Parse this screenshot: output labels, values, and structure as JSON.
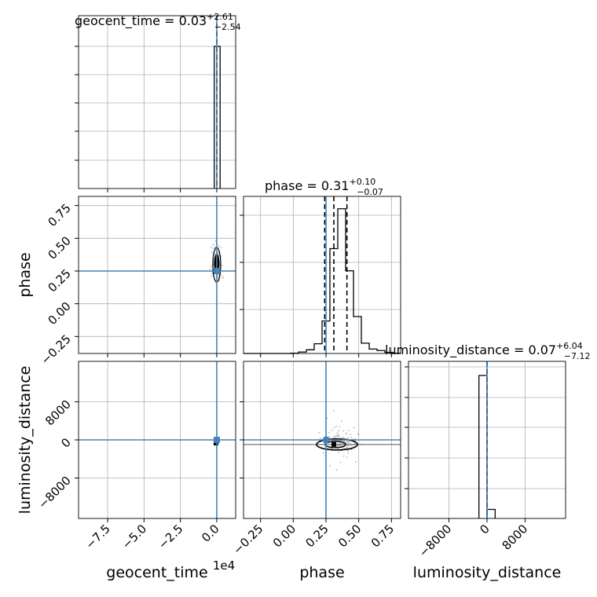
{
  "chart_data": [
    {
      "panel": "1-1",
      "type": "histogram",
      "parameter": "geocent_time",
      "title": {
        "name": "geocent_time",
        "median": "0.03",
        "upper": "+2.61",
        "lower": "−2.54"
      },
      "xlim": [
        -95000,
        13000
      ],
      "bins": [
        {
          "x0": -1700,
          "x1": 2300,
          "count": 1.0
        }
      ],
      "quantile_lines": [
        -2.51,
        0.03,
        2.64
      ],
      "truth": 0,
      "grid": true
    },
    {
      "panel": "2-1",
      "type": "scatter",
      "x_parameter": "geocent_time",
      "y_parameter": "phase",
      "xlim": [
        -95000,
        13000
      ],
      "ylim": [
        -0.38,
        0.82
      ],
      "truth": {
        "x": 0,
        "y": 0.25
      },
      "density_center": {
        "x": 0,
        "y": 0.31
      },
      "grid": true
    },
    {
      "panel": "2-2",
      "type": "histogram",
      "parameter": "phase",
      "title": {
        "name": "phase",
        "median": "0.31",
        "upper": "+0.10",
        "lower": "−0.07"
      },
      "xlim": [
        -0.38,
        0.82
      ],
      "bin_edges": [
        -0.38,
        -0.32,
        -0.26,
        -0.2,
        -0.14,
        -0.08,
        -0.02,
        0.04,
        0.1,
        0.16,
        0.22,
        0.28,
        0.34,
        0.4,
        0.46,
        0.52,
        0.58,
        0.64,
        0.7,
        0.76,
        0.82
      ],
      "counts": [
        0,
        0,
        0,
        0,
        0,
        0,
        0.002,
        0.01,
        0.025,
        0.066,
        0.22,
        0.71,
        0.98,
        0.56,
        0.25,
        0.07,
        0.03,
        0.02,
        0.008,
        0.002
      ],
      "quantile_lines": [
        0.24,
        0.31,
        0.41
      ],
      "truth": 0.25,
      "grid": true
    },
    {
      "panel": "3-1",
      "type": "scatter",
      "x_parameter": "geocent_time",
      "y_parameter": "luminosity_distance",
      "xlim": [
        -95000,
        13000
      ],
      "ylim": [
        -16500,
        16500
      ],
      "truth": {
        "x": 0,
        "y": 0
      },
      "grid": true
    },
    {
      "panel": "3-2",
      "type": "scatter",
      "x_parameter": "phase",
      "y_parameter": "luminosity_distance",
      "xlim": [
        -0.38,
        0.82
      ],
      "ylim": [
        -16500,
        16500
      ],
      "truth": {
        "x": 0.25,
        "y": 0
      },
      "density_center": {
        "x": 0.31,
        "y": -800
      },
      "grid": true
    },
    {
      "panel": "3-3",
      "type": "histogram",
      "parameter": "luminosity_distance",
      "title": {
        "name": "luminosity_distance",
        "median": "0.07",
        "upper": "+6.04",
        "lower": "−7.12"
      },
      "xlim": [
        -16500,
        16500
      ],
      "bins": [
        {
          "x0": -1700,
          "x1": 0,
          "count": 0.95
        },
        {
          "x0": 0,
          "x1": 1700,
          "count": 0.06
        }
      ],
      "quantile_lines": [
        -7.05,
        0.07,
        6.11
      ],
      "truth": 0,
      "grid": true
    }
  ],
  "axes": {
    "x_bottom_labels": [
      "geocent_time",
      "phase",
      "luminosity_distance"
    ],
    "y_left_labels": [
      "phase",
      "luminosity_distance"
    ],
    "x_offset_text": "1e4",
    "geocent_time_ticks": [
      "−7.5",
      "−5.0",
      "−2.5",
      "0.0"
    ],
    "phase_ticks": [
      "−0.25",
      "0.00",
      "0.25",
      "0.50",
      "0.75"
    ],
    "luminosity_distance_ticks": [
      "−8000",
      "0",
      "8000"
    ]
  },
  "colors": {
    "truth": "#4682b4",
    "histogram": "#000000",
    "scatter": "#c0c0c0",
    "grid": "#b0b0b0"
  }
}
